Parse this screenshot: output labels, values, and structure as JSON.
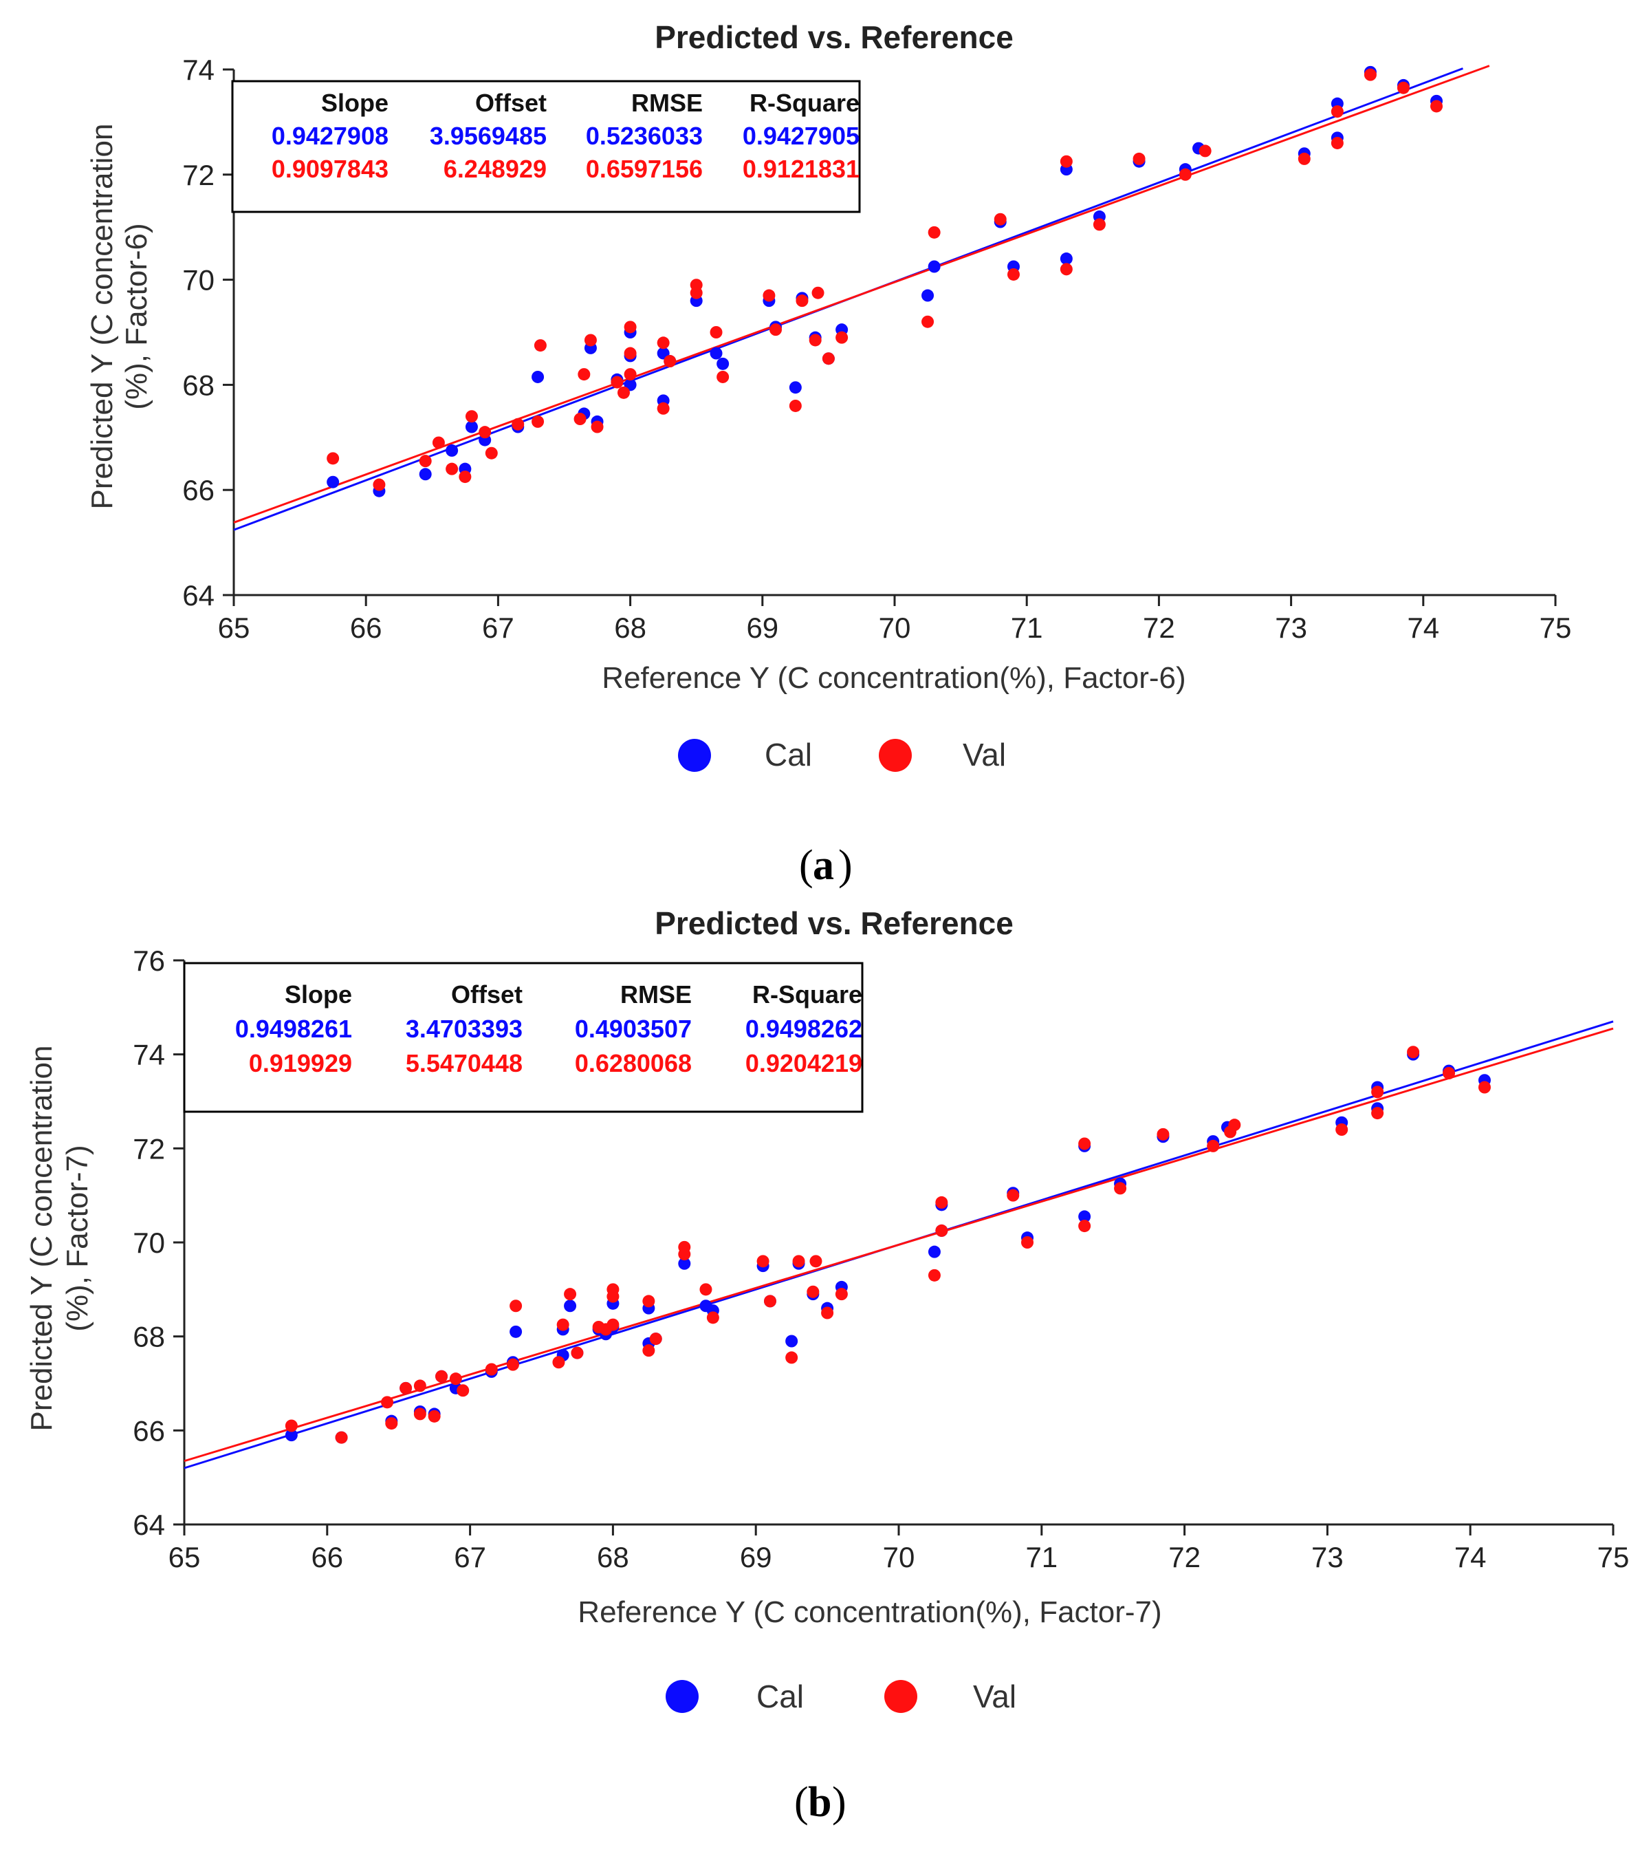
{
  "colors": {
    "cal": "#0b0bff",
    "val": "#ff1010",
    "axis": "#222222"
  },
  "chart_data": [
    {
      "panel": "a",
      "caption_letter": "a",
      "type": "scatter",
      "title": "Predicted vs. Reference",
      "xlabel": "Reference Y (C concentration(%), Factor-6)",
      "ylabel_line1": "Predicted Y (C concentration",
      "ylabel_line2": "(%), Factor-6)",
      "xlim": [
        65,
        75
      ],
      "ylim": [
        64,
        74
      ],
      "xticks": [
        "65",
        "66",
        "67",
        "68",
        "69",
        "70",
        "71",
        "72",
        "73",
        "74",
        "75"
      ],
      "yticks": [
        "64",
        "66",
        "68",
        "70",
        "72",
        "74"
      ],
      "legend": [
        "Cal",
        "Val"
      ],
      "stats_header": [
        "Slope",
        "Offset",
        "RMSE",
        "R-Square"
      ],
      "stats": [
        {
          "name": "Cal",
          "values": [
            "0.9427908",
            "3.9569485",
            "0.5236033",
            "0.9427905"
          ]
        },
        {
          "name": "Val",
          "values": [
            "0.9097843",
            "6.248929",
            "0.6597156",
            "0.9121831"
          ]
        }
      ],
      "lines": [
        {
          "name": "Cal",
          "x": [
            65,
            74.3
          ],
          "y": [
            65.24,
            74.02
          ]
        },
        {
          "name": "Val",
          "x": [
            65,
            74.5
          ],
          "y": [
            65.38,
            74.07
          ]
        }
      ],
      "series": [
        {
          "name": "Cal",
          "points": [
            [
              65.75,
              66.15
            ],
            [
              66.1,
              65.98
            ],
            [
              66.45,
              66.3
            ],
            [
              66.65,
              66.75
            ],
            [
              66.75,
              66.4
            ],
            [
              66.8,
              67.2
            ],
            [
              66.9,
              66.95
            ],
            [
              67.15,
              67.2
            ],
            [
              67.3,
              68.15
            ],
            [
              67.65,
              67.45
            ],
            [
              67.7,
              68.7
            ],
            [
              67.75,
              67.3
            ],
            [
              67.9,
              68.1
            ],
            [
              68.0,
              68.55
            ],
            [
              68.0,
              69.0
            ],
            [
              68.0,
              68.0
            ],
            [
              68.25,
              68.6
            ],
            [
              68.25,
              67.7
            ],
            [
              68.3,
              68.45
            ],
            [
              68.5,
              69.6
            ],
            [
              68.65,
              68.6
            ],
            [
              68.7,
              68.4
            ],
            [
              69.05,
              69.6
            ],
            [
              69.1,
              69.1
            ],
            [
              69.25,
              67.95
            ],
            [
              69.3,
              69.65
            ],
            [
              69.4,
              68.9
            ],
            [
              69.5,
              68.5
            ],
            [
              69.6,
              69.05
            ],
            [
              70.25,
              69.7
            ],
            [
              70.3,
              70.25
            ],
            [
              70.8,
              71.1
            ],
            [
              70.9,
              70.25
            ],
            [
              71.3,
              72.1
            ],
            [
              71.3,
              70.4
            ],
            [
              71.55,
              71.2
            ],
            [
              71.85,
              72.25
            ],
            [
              72.2,
              72.1
            ],
            [
              72.3,
              72.5
            ],
            [
              73.1,
              72.4
            ],
            [
              73.35,
              73.35
            ],
            [
              73.35,
              72.7
            ],
            [
              73.6,
              73.95
            ],
            [
              73.85,
              73.7
            ],
            [
              74.1,
              73.4
            ]
          ]
        },
        {
          "name": "Val",
          "points": [
            [
              65.75,
              66.6
            ],
            [
              66.1,
              66.1
            ],
            [
              66.45,
              66.55
            ],
            [
              66.55,
              66.9
            ],
            [
              66.65,
              66.4
            ],
            [
              66.75,
              66.25
            ],
            [
              66.8,
              67.4
            ],
            [
              66.9,
              67.1
            ],
            [
              66.95,
              66.7
            ],
            [
              67.15,
              67.25
            ],
            [
              67.3,
              67.3
            ],
            [
              67.32,
              68.75
            ],
            [
              67.62,
              67.35
            ],
            [
              67.65,
              68.2
            ],
            [
              67.7,
              68.85
            ],
            [
              67.75,
              67.2
            ],
            [
              67.9,
              68.05
            ],
            [
              67.95,
              67.85
            ],
            [
              68.0,
              68.2
            ],
            [
              68.0,
              69.1
            ],
            [
              68.0,
              68.6
            ],
            [
              68.25,
              68.8
            ],
            [
              68.25,
              67.55
            ],
            [
              68.3,
              68.45
            ],
            [
              68.5,
              69.9
            ],
            [
              68.5,
              69.75
            ],
            [
              68.65,
              69.0
            ],
            [
              68.7,
              68.15
            ],
            [
              69.05,
              69.7
            ],
            [
              69.1,
              69.05
            ],
            [
              69.25,
              67.6
            ],
            [
              69.3,
              69.6
            ],
            [
              69.4,
              68.85
            ],
            [
              69.42,
              69.75
            ],
            [
              69.5,
              68.5
            ],
            [
              69.6,
              68.9
            ],
            [
              70.25,
              69.2
            ],
            [
              70.3,
              70.9
            ],
            [
              70.8,
              71.15
            ],
            [
              70.9,
              70.1
            ],
            [
              71.3,
              72.25
            ],
            [
              71.3,
              70.2
            ],
            [
              71.55,
              71.05
            ],
            [
              71.85,
              72.3
            ],
            [
              72.2,
              72.0
            ],
            [
              72.35,
              72.45
            ],
            [
              73.1,
              72.3
            ],
            [
              73.35,
              73.2
            ],
            [
              73.35,
              72.6
            ],
            [
              73.6,
              73.9
            ],
            [
              73.85,
              73.65
            ],
            [
              74.1,
              73.3
            ]
          ]
        }
      ]
    },
    {
      "panel": "b",
      "caption_letter": "b",
      "type": "scatter",
      "title": "Predicted vs. Reference",
      "xlabel": "Reference Y (C concentration(%), Factor-7)",
      "ylabel_line1": "Predicted Y (C concentration",
      "ylabel_line2": "(%), Factor-7)",
      "xlim": [
        65,
        75
      ],
      "ylim": [
        64,
        76
      ],
      "xticks": [
        "65",
        "66",
        "67",
        "68",
        "69",
        "70",
        "71",
        "72",
        "73",
        "74",
        "75"
      ],
      "yticks": [
        "64",
        "66",
        "68",
        "70",
        "72",
        "74",
        "76"
      ],
      "legend": [
        "Cal",
        "Val"
      ],
      "stats_header": [
        "Slope",
        "Offset",
        "RMSE",
        "R-Square"
      ],
      "stats": [
        {
          "name": "Cal",
          "values": [
            "0.9498261",
            "3.4703393",
            "0.4903507",
            "0.9498262"
          ]
        },
        {
          "name": "Val",
          "values": [
            "0.919929",
            "5.5470448",
            "0.6280068",
            "0.9204219"
          ]
        }
      ],
      "lines": [
        {
          "name": "Cal",
          "x": [
            65,
            75
          ],
          "y": [
            65.2,
            74.7
          ]
        },
        {
          "name": "Val",
          "x": [
            65,
            75
          ],
          "y": [
            65.35,
            74.55
          ]
        }
      ],
      "series": [
        {
          "name": "Cal",
          "points": [
            [
              65.75,
              65.9
            ],
            [
              66.1,
              65.85
            ],
            [
              66.45,
              66.2
            ],
            [
              66.55,
              66.9
            ],
            [
              66.65,
              66.4
            ],
            [
              66.75,
              66.35
            ],
            [
              66.8,
              67.15
            ],
            [
              66.9,
              66.9
            ],
            [
              67.15,
              67.25
            ],
            [
              67.3,
              67.45
            ],
            [
              67.32,
              68.1
            ],
            [
              67.65,
              67.6
            ],
            [
              67.65,
              68.15
            ],
            [
              67.7,
              68.65
            ],
            [
              67.75,
              67.65
            ],
            [
              67.9,
              68.15
            ],
            [
              67.95,
              68.05
            ],
            [
              68.0,
              68.7
            ],
            [
              68.0,
              68.2
            ],
            [
              68.25,
              68.6
            ],
            [
              68.25,
              67.85
            ],
            [
              68.3,
              67.95
            ],
            [
              68.5,
              69.55
            ],
            [
              68.65,
              68.65
            ],
            [
              68.7,
              68.55
            ],
            [
              69.05,
              69.5
            ],
            [
              69.1,
              68.75
            ],
            [
              69.25,
              67.9
            ],
            [
              69.3,
              69.55
            ],
            [
              69.4,
              68.9
            ],
            [
              69.5,
              68.6
            ],
            [
              69.6,
              69.05
            ],
            [
              70.25,
              69.8
            ],
            [
              70.3,
              70.8
            ],
            [
              70.3,
              70.25
            ],
            [
              70.8,
              71.05
            ],
            [
              70.9,
              70.1
            ],
            [
              71.3,
              72.05
            ],
            [
              71.3,
              70.55
            ],
            [
              71.55,
              71.25
            ],
            [
              71.85,
              72.25
            ],
            [
              72.2,
              72.15
            ],
            [
              72.3,
              72.45
            ],
            [
              73.1,
              72.55
            ],
            [
              73.35,
              73.3
            ],
            [
              73.35,
              72.85
            ],
            [
              73.6,
              74.0
            ],
            [
              73.85,
              73.65
            ],
            [
              74.1,
              73.45
            ]
          ]
        },
        {
          "name": "Val",
          "points": [
            [
              65.75,
              66.1
            ],
            [
              66.1,
              65.85
            ],
            [
              66.45,
              66.15
            ],
            [
              66.42,
              66.6
            ],
            [
              66.55,
              66.9
            ],
            [
              66.65,
              66.95
            ],
            [
              66.65,
              66.35
            ],
            [
              66.75,
              66.3
            ],
            [
              66.8,
              67.15
            ],
            [
              66.9,
              67.1
            ],
            [
              66.95,
              66.85
            ],
            [
              67.15,
              67.3
            ],
            [
              67.3,
              67.4
            ],
            [
              67.32,
              68.65
            ],
            [
              67.62,
              67.45
            ],
            [
              67.65,
              68.25
            ],
            [
              67.7,
              68.9
            ],
            [
              67.75,
              67.65
            ],
            [
              67.9,
              68.2
            ],
            [
              67.95,
              68.15
            ],
            [
              68.0,
              68.85
            ],
            [
              68.0,
              69.0
            ],
            [
              68.0,
              68.25
            ],
            [
              68.25,
              68.75
            ],
            [
              68.25,
              67.7
            ],
            [
              68.3,
              67.95
            ],
            [
              68.5,
              69.9
            ],
            [
              68.5,
              69.75
            ],
            [
              68.65,
              69.0
            ],
            [
              68.7,
              68.4
            ],
            [
              69.05,
              69.6
            ],
            [
              69.1,
              68.75
            ],
            [
              69.25,
              67.55
            ],
            [
              69.3,
              69.6
            ],
            [
              69.4,
              68.95
            ],
            [
              69.42,
              69.6
            ],
            [
              69.5,
              68.5
            ],
            [
              69.6,
              68.9
            ],
            [
              70.25,
              69.3
            ],
            [
              70.3,
              70.85
            ],
            [
              70.3,
              70.25
            ],
            [
              70.8,
              71.0
            ],
            [
              70.9,
              70.0
            ],
            [
              71.3,
              72.1
            ],
            [
              71.3,
              70.35
            ],
            [
              71.55,
              71.15
            ],
            [
              71.85,
              72.3
            ],
            [
              72.2,
              72.05
            ],
            [
              72.35,
              72.5
            ],
            [
              72.32,
              72.35
            ],
            [
              73.1,
              72.4
            ],
            [
              73.35,
              73.2
            ],
            [
              73.35,
              72.75
            ],
            [
              73.6,
              74.05
            ],
            [
              73.85,
              73.6
            ],
            [
              74.1,
              73.3
            ]
          ]
        }
      ]
    }
  ]
}
